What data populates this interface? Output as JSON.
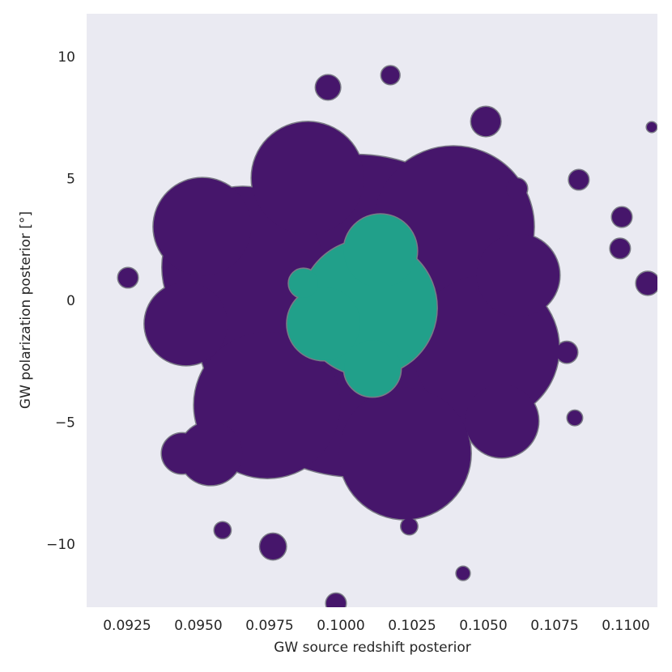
{
  "chart_data": {
    "type": "contour",
    "xlabel": "GW source redshift posterior",
    "ylabel": "GW polarization posterior [°]",
    "xlim": [
      0.09108,
      0.11111
    ],
    "ylim": [
      -12.56,
      11.79
    ],
    "xticks": [
      0.0925,
      {
        "value": 0.095,
        "label": "0.0950"
      },
      0.0975,
      {
        "value": 0.1,
        "label": "0.1000"
      },
      0.1025,
      {
        "value": 0.105,
        "label": "0.1050"
      },
      0.1075,
      {
        "value": 0.11,
        "label": "0.1100"
      }
    ],
    "yticks": [
      {
        "value": -10,
        "label": "−10"
      },
      {
        "value": -5,
        "label": "−5"
      },
      0,
      5,
      10
    ],
    "background": "#eaeaf2",
    "outline_color": "#7a7a86",
    "series": [
      {
        "color": "#46166b",
        "x": [
          0.10054,
          0.09656,
          0.10395,
          0.10509,
          0.09742,
          0.10225,
          0.09884,
          0.09514,
          0.09457,
          0.10622,
          0.10565,
          0.09543,
          0.09253,
          0.09955,
          0.10174,
          0.10509,
          0.10617,
          0.10835,
          0.10986,
          0.1098,
          0.11077,
          0.10793,
          0.10821,
          0.09762,
          0.09983,
          0.09585,
          0.1024,
          0.09443,
          0.10429,
          0.11091
        ],
        "values": [
          -0.6,
          1.39,
          3.05,
          -1.93,
          -4.26,
          -6.25,
          5.05,
          3.05,
          -0.93,
          1.06,
          -4.92,
          -6.25,
          0.96,
          8.77,
          9.27,
          7.37,
          4.61,
          4.98,
          3.45,
          2.16,
          0.73,
          -2.1,
          -4.79,
          -10.07,
          -12.4,
          -9.4,
          -9.24,
          -6.25,
          -11.17,
          7.14
        ],
        "sizes": [
          6.6,
          3.3,
          3.3,
          3.0,
          3.0,
          2.7,
          2.3,
          2.0,
          1.7,
          1.7,
          1.5,
          1.3,
          0.4,
          0.5,
          0.37,
          0.6,
          0.43,
          0.4,
          0.4,
          0.4,
          0.47,
          0.43,
          0.3,
          0.53,
          0.4,
          0.33,
          0.33,
          0.83,
          0.27,
          0.2
        ]
      },
      {
        "color": "#21a08a",
        "x": [
          0.10097,
          0.10139,
          0.0994,
          0.10111,
          0.09869
        ],
        "values": [
          -0.27,
          2.06,
          -0.93,
          -2.76,
          0.73
        ],
        "sizes": [
          2.8,
          1.5,
          1.5,
          1.16,
          0.6
        ]
      }
    ]
  }
}
